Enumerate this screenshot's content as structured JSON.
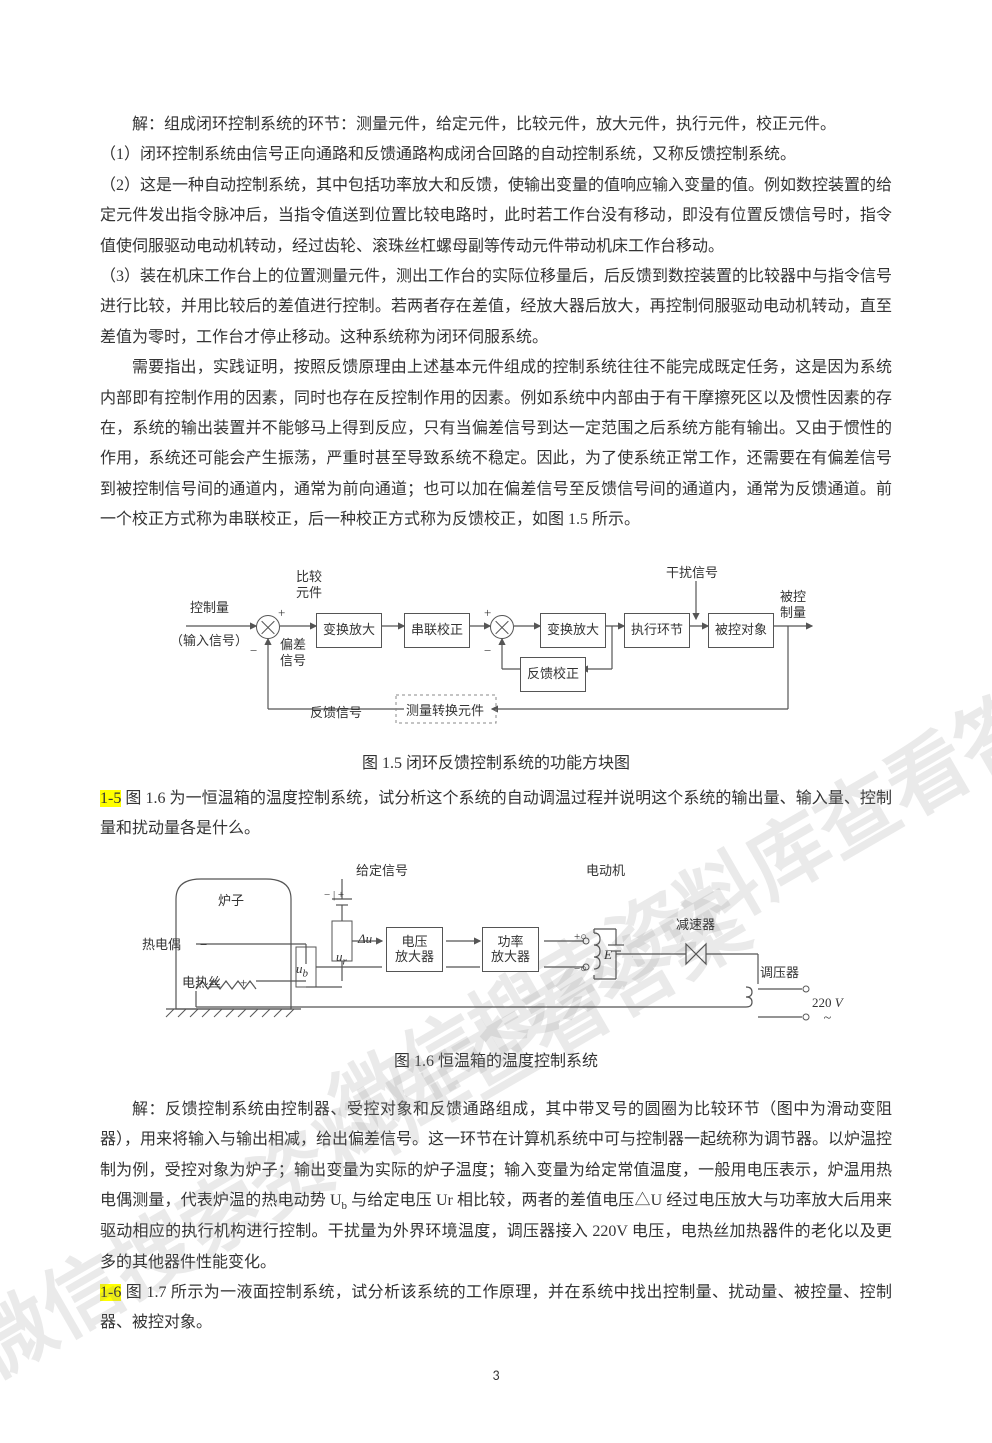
{
  "paragraphs": {
    "p1": "解：组成闭环控制系统的环节：测量元件，给定元件，比较元件，放大元件，执行元件，校正元件。",
    "p2": "（1）闭环控制系统由信号正向通路和反馈通路构成闭合回路的自动控制系统，又称反馈控制系统。",
    "p3": "（2）这是一种自动控制系统，其中包括功率放大和反馈，使输出变量的值响应输入变量的值。例如数控装置的给定元件发出指令脉冲后，当指令值送到位置比较电路时，此时若工作台没有移动，即没有位置反馈信号时，指令值使伺服驱动电动机转动，经过齿轮、滚珠丝杠螺母副等传动元件带动机床工作台移动。",
    "p4": "（3）装在机床工作台上的位置测量元件，测出工作台的实际位移量后，后反馈到数控装置的比较器中与指令信号进行比较，并用比较后的差值进行控制。若两者存在差值，经放大器后放大，再控制伺服驱动电动机转动，直至差值为零时，工作台才停止移动。这种系统称为闭环伺服系统。",
    "p5": "需要指出，实践证明，按照反馈原理由上述基本元件组成的控制系统往往不能完成既定任务，这是因为系统内部即有控制作用的因素，同时也存在反控制作用的因素。例如系统中内部由于有干摩擦死区以及惯性因素的存在，系统的输出装置并不能够马上得到反应，只有当偏差信号到达一定范围之后系统方能有输出。又由于惯性的作用，系统还可能会产生振荡，严重时甚至导致系统不稳定。因此，为了使系统正常工作，还需要在有偏差信号到被控制信号间的通道内，通常为前向通道；也可以加在偏差信号至反馈信号间的通道内，通常为反馈通道。前一个校正方式称为串联校正，后一种校正方式称为反馈校正，如图 1.5 所示。"
  },
  "figure15": {
    "caption": "图 1.5 闭环反馈控制系统的功能方块图",
    "labels": {
      "compare": "比较\n元件",
      "control": "控制量",
      "input": "（输入信号）",
      "bias": "偏差\n信号",
      "amp1": "变换放大",
      "series_corr": "串联校正",
      "amp2": "变换放大",
      "actuator": "执行环节",
      "plant": "被控对象",
      "disturbance": "干扰信号",
      "output": "被控\n制量",
      "feedback_corr": "反馈校正",
      "feedback_sig": "反馈信号",
      "meas": "测量转换元件",
      "plus": "+",
      "minus": "−"
    }
  },
  "q15": {
    "tag": "1-5",
    "text": " 图 1.6 为一恒温箱的温度控制系统，试分析这个系统的自动调温过程并说明这个系统的输出量、输入量、控制量和扰动量各是什么。"
  },
  "figure16": {
    "caption": "图 1.6 恒温箱的温度控制系统",
    "labels": {
      "furnace": "炉子",
      "thermocouple": "热电偶",
      "heater": "电热丝",
      "set": "给定信号",
      "ub": "u",
      "ub_sub": "b",
      "ur": "u",
      "ur_sub": "r",
      "du": "Δu",
      "vamp": "电压\n放大器",
      "pamp": "功率\n放大器",
      "motor": "电动机",
      "E": "E",
      "reducer": "减速器",
      "regulator": "调压器",
      "v220": "220",
      "vunit": "V"
    }
  },
  "answer16": {
    "p1": "解：反馈控制系统由控制器、受控对象和反馈通路组成，其中带叉号的圆圈为比较环节（图中为滑动变阻器），用来将输入与输出相减，给出偏差信号。这一环节在计算机系统中可与控制器一起统称为调节器。以炉温控制为例，受控对象为炉子；输出变量为实际的炉子温度；输入变量为给定常值温度，一般用电压表示，炉温用热电偶测量，代表炉温的热电动势 U",
    "p1b": " 与给定电压 Ur 相比较，两者的差值电压△U 经过电压放大与功率放大后用来驱动相应的执行机构进行控制。干扰量为外界环境温度，调压器接入 220V 电压，电热丝加热器件的老化以及更多的其他器件性能变化。",
    "sub_b": "b"
  },
  "q16": {
    "tag": "1-6",
    "text": " 图 1.7 所示为一液面控制系统，试分析该系统的工作原理，并在系统中找出控制量、扰动量、被控量、控制器、被控对象。"
  },
  "pagenum": "3",
  "watermark": "微信搜索资料库查看答案"
}
